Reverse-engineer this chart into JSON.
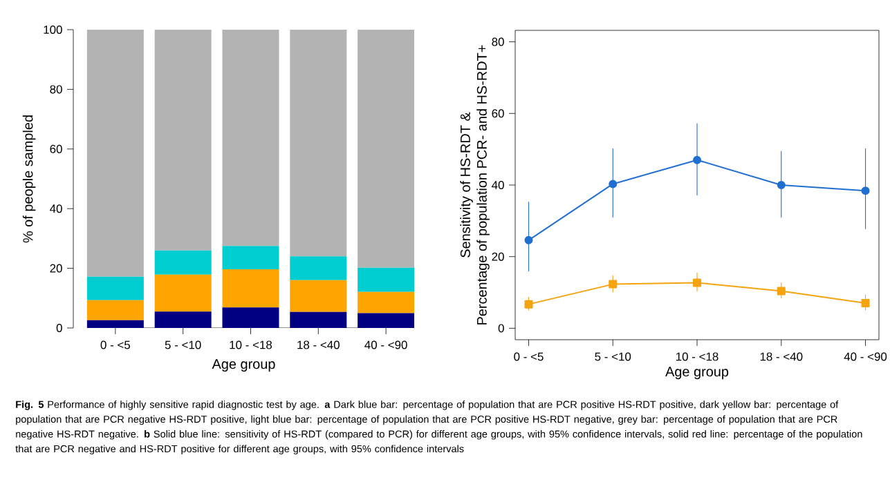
{
  "chart_data": [
    {
      "type": "bar",
      "stacked": true,
      "xlabel": "Age group",
      "ylabel": "% of people sampled",
      "categories": [
        "0 - <5",
        "5 - <10",
        "10 - <18",
        "18 - <40",
        "40 - <90"
      ],
      "series": [
        {
          "color": "#000080",
          "values": [
            2.6,
            5.5,
            6.9,
            5.4,
            5.0
          ]
        },
        {
          "color": "#ffa500",
          "values": [
            6.7,
            12.4,
            12.8,
            10.6,
            7.1
          ]
        },
        {
          "color": "#00cdd0",
          "values": [
            7.9,
            8.1,
            7.8,
            8.0,
            8.1
          ]
        },
        {
          "color": "#b3b3b3",
          "values": [
            82.8,
            74.0,
            72.5,
            76.0,
            79.8
          ]
        }
      ],
      "ylim": [
        0,
        100
      ],
      "yticks": [
        0,
        20,
        40,
        60,
        80,
        100
      ],
      "annotations": [
        "**Fig. 5** Performance of highly sensitive rapid diagnostic test by age. **a** Dark blue bar: percentage of population that are PCR positive HS-RDT positive, dark yellow bar: percentage of population that are PCR negative HS-RDT positive, light blue bar: percentage of population that are PCR positive HS-RDT negative, grey bar: percentage of population that are PCR negative HS-RDT negative. **b** Solid blue line: sensitivity of HS-RDT (compared to PCR) for different age groups, with 95% confidence intervals, solid red line: percentage of the population that are PCR negative and HS-RDT positive for different age groups, with 95% confidence intervals"
      ]
    },
    {
      "type": "line",
      "xlabel": "Age group",
      "ylabel": "Sensitivity of HS-RDT &\nPercentage of population PCR- and HS-RDT+",
      "categories": [
        "0 - <5",
        "5 - <10",
        "10 - <18",
        "18 - <40",
        "40 - <90"
      ],
      "series": [
        {
          "color": "#1f6fd0",
          "marker": "circle",
          "values": [
            24.6,
            40.3,
            47.0,
            40.0,
            38.4
          ],
          "errors": [
            [
              15.9,
              35.3
            ],
            [
              30.9,
              50.2
            ],
            [
              37.1,
              57.2
            ],
            [
              30.9,
              49.5
            ],
            [
              27.7,
              50.2
            ]
          ]
        },
        {
          "color": "#f5a30f",
          "marker": "square",
          "values": [
            6.7,
            12.3,
            12.7,
            10.4,
            7.0
          ],
          "errors": [
            [
              5.0,
              8.7
            ],
            [
              10.0,
              14.8
            ],
            [
              10.3,
              15.5
            ],
            [
              8.4,
              12.8
            ],
            [
              5.0,
              9.4
            ]
          ]
        }
      ],
      "ylim": [
        -3.2,
        83.2
      ],
      "yticks": [
        0,
        20,
        40,
        60,
        80
      ]
    }
  ]
}
